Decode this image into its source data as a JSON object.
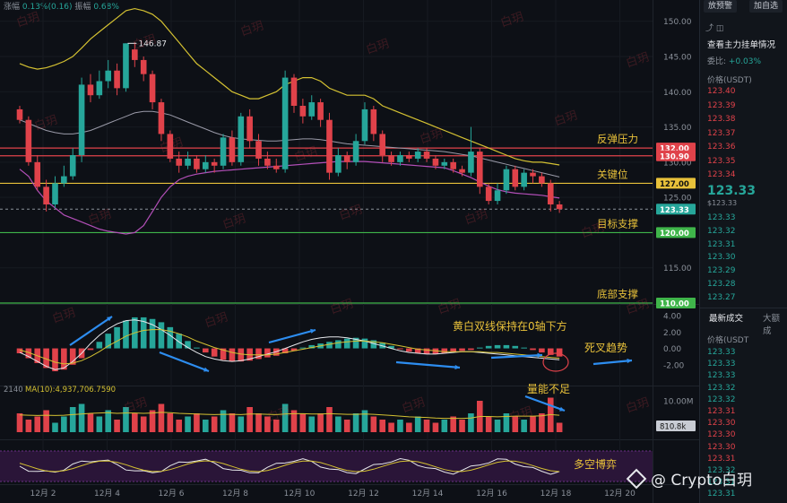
{
  "header": {
    "change_label": "涨幅",
    "change_value": "0.13%(0.16)",
    "amplitude_label": "振幅",
    "amplitude_value": "0.68%"
  },
  "chart_data": {
    "type": "candlestick",
    "symbol_price_last": 123.33,
    "price_axis": {
      "ylim": [
        110,
        152
      ],
      "ticks": [
        150,
        145,
        140,
        135,
        130,
        125,
        120,
        115
      ]
    },
    "x_ticks": [
      "12月 2",
      "12月 4",
      "12月 6",
      "12月 8",
      "12月 10",
      "12月 12",
      "12月 14",
      "12月 16",
      "12月 18",
      "12月 20"
    ],
    "high_annotation": "146.87",
    "candles": [
      [
        137.5,
        136.0,
        138.0,
        135.5
      ],
      [
        136.0,
        130.0,
        136.5,
        129.5
      ],
      [
        130.0,
        126.5,
        131.0,
        126.0
      ],
      [
        126.5,
        124.0,
        127.5,
        123.0
      ],
      [
        124.0,
        127.0,
        128.0,
        123.5
      ],
      [
        127.0,
        128.0,
        129.5,
        126.5
      ],
      [
        128.0,
        131.0,
        132.0,
        127.5
      ],
      [
        131.0,
        141.0,
        142.0,
        130.0
      ],
      [
        141.0,
        139.5,
        142.5,
        138.5
      ],
      [
        139.5,
        141.5,
        143.0,
        139.0
      ],
      [
        141.5,
        143.0,
        144.5,
        140.5
      ],
      [
        143.0,
        140.5,
        144.0,
        139.5
      ],
      [
        140.5,
        146.87,
        146.87,
        140.0
      ],
      [
        146.0,
        144.5,
        147.0,
        143.5
      ],
      [
        144.5,
        142.5,
        145.0,
        141.5
      ],
      [
        142.5,
        138.5,
        143.0,
        137.5
      ],
      [
        138.5,
        134.0,
        139.0,
        133.0
      ],
      [
        134.0,
        130.5,
        134.5,
        130.0
      ],
      [
        130.5,
        129.5,
        131.5,
        128.5
      ],
      [
        129.5,
        130.5,
        131.5,
        129.0
      ],
      [
        130.5,
        129.0,
        131.0,
        128.5
      ],
      [
        129.0,
        130.0,
        131.0,
        128.5
      ],
      [
        130.0,
        129.5,
        130.5,
        128.5
      ],
      [
        129.5,
        133.5,
        134.0,
        129.0
      ],
      [
        133.5,
        130.0,
        134.5,
        129.5
      ],
      [
        130.0,
        136.5,
        137.0,
        129.5
      ],
      [
        136.5,
        133.0,
        137.5,
        132.0
      ],
      [
        133.0,
        130.5,
        134.0,
        129.5
      ],
      [
        130.5,
        129.5,
        131.5,
        129.0
      ],
      [
        129.5,
        129.0,
        130.5,
        128.5
      ],
      [
        129.0,
        142.0,
        143.0,
        128.5
      ],
      [
        142.0,
        138.0,
        142.5,
        137.0
      ],
      [
        138.0,
        136.5,
        139.0,
        135.5
      ],
      [
        136.5,
        138.5,
        139.5,
        136.0
      ],
      [
        138.5,
        136.0,
        139.0,
        135.0
      ],
      [
        136.0,
        128.5,
        137.0,
        127.5
      ],
      [
        128.5,
        131.0,
        132.0,
        128.0
      ],
      [
        131.0,
        130.0,
        131.5,
        129.0
      ],
      [
        130.0,
        133.0,
        134.0,
        129.5
      ],
      [
        133.0,
        137.5,
        138.5,
        132.5
      ],
      [
        137.5,
        134.0,
        138.0,
        133.0
      ],
      [
        134.0,
        131.0,
        134.5,
        130.0
      ],
      [
        131.0,
        130.0,
        131.5,
        129.5
      ],
      [
        130.0,
        131.0,
        131.5,
        129.5
      ],
      [
        131.0,
        130.5,
        131.5,
        130.0
      ],
      [
        130.5,
        131.5,
        132.0,
        130.0
      ],
      [
        131.5,
        130.5,
        132.0,
        130.0
      ],
      [
        130.5,
        129.5,
        131.0,
        129.0
      ],
      [
        129.5,
        130.0,
        130.5,
        129.0
      ],
      [
        130.0,
        129.0,
        130.5,
        128.5
      ],
      [
        129.0,
        128.5,
        129.5,
        128.0
      ],
      [
        128.5,
        131.5,
        135.0,
        128.0
      ],
      [
        131.5,
        126.5,
        132.0,
        125.5
      ],
      [
        126.5,
        124.5,
        127.0,
        124.0
      ],
      [
        124.5,
        126.0,
        127.0,
        124.0
      ],
      [
        126.0,
        129.0,
        129.5,
        125.5
      ],
      [
        129.0,
        126.5,
        129.5,
        126.0
      ],
      [
        126.5,
        128.5,
        129.0,
        126.0
      ],
      [
        128.5,
        128.0,
        129.0,
        127.0
      ],
      [
        128.0,
        127.0,
        128.5,
        126.5
      ],
      [
        127.0,
        124.0,
        127.5,
        123.0
      ],
      [
        124.0,
        123.33,
        124.5,
        122.8
      ]
    ],
    "bollinger": {
      "upper": [
        144,
        143.5,
        143.2,
        143.4,
        143.8,
        144.3,
        145,
        146.2,
        147.5,
        148.5,
        149.5,
        150.5,
        151.5,
        151.8,
        151.5,
        151,
        150,
        148.5,
        147,
        145.5,
        144,
        143,
        142,
        141,
        140,
        139.5,
        139,
        139,
        139.5,
        140,
        141,
        141.5,
        142,
        142,
        141.5,
        140.5,
        140,
        139.5,
        139.5,
        139.5,
        139,
        138,
        137.5,
        137,
        136.5,
        136,
        135.5,
        135,
        134.5,
        134,
        133.5,
        133,
        132.5,
        132,
        131.5,
        131,
        130.5,
        130.2,
        130,
        130,
        129.8,
        129.6
      ],
      "middle": [
        136,
        135.5,
        135,
        134.5,
        134.2,
        134,
        134,
        134.2,
        134.5,
        135,
        135.5,
        136,
        136.5,
        137,
        137.2,
        137.2,
        137,
        136.7,
        136.2,
        135.7,
        135.2,
        134.7,
        134.2,
        133.8,
        133.5,
        133.3,
        133.2,
        133.1,
        133,
        133,
        133.1,
        133.2,
        133.3,
        133.3,
        133.2,
        133,
        132.8,
        132.6,
        132.5,
        132.4,
        132.3,
        132.2,
        132.1,
        132,
        131.9,
        131.8,
        131.7,
        131.6,
        131.5,
        131.3,
        131.1,
        130.9,
        130.6,
        130.3,
        130,
        129.7,
        129.4,
        129.1,
        128.8,
        128.5,
        128.2,
        127.9
      ],
      "lower": [
        129,
        128,
        126,
        124.5,
        123.5,
        122.5,
        122,
        121.5,
        121,
        120.5,
        120.2,
        120,
        119.8,
        120,
        121,
        123,
        125,
        126.5,
        127.5,
        128,
        128.3,
        128.5,
        128.7,
        128.8,
        128.9,
        129,
        129.1,
        129.2,
        129.3,
        129.4,
        129.5,
        129.6,
        129.7,
        129.8,
        129.9,
        130,
        130.1,
        130.1,
        130.1,
        130.1,
        130,
        129.9,
        129.8,
        129.7,
        129.6,
        129.5,
        129.4,
        129.3,
        129.2,
        128.8,
        128.3,
        127.8,
        127.2,
        126.6,
        126.1,
        125.8,
        125.6,
        125.5,
        125.4,
        125.3,
        125.1,
        124.9
      ]
    },
    "horizontal_levels": [
      {
        "price": 132.0,
        "tag": "132.00",
        "label": "反弹压力",
        "color": "#e0424a"
      },
      {
        "price": 130.9,
        "tag": "130.90",
        "label": "",
        "color": "#e0424a"
      },
      {
        "price": 127.0,
        "tag": "127.00",
        "label": "关键位",
        "color": "#e8c13a"
      },
      {
        "price": 120.0,
        "tag": "120.00",
        "label": "目标支撑",
        "color": "#3fb54a"
      },
      {
        "price": 110.0,
        "tag": "110.00",
        "label": "底部支撑",
        "color": "#3fb54a"
      }
    ],
    "current_price_tag": "123.33",
    "macd": {
      "axis_ticks": [
        "4.00",
        "2.00",
        "0.00",
        "-2.00"
      ],
      "ylim": [
        -4,
        5
      ],
      "histogram": [
        -0.6,
        -1.2,
        -1.8,
        -2.4,
        -2.8,
        -2.6,
        -2.0,
        -1.2,
        -0.2,
        0.8,
        1.8,
        2.6,
        3.4,
        3.8,
        3.8,
        3.6,
        3.2,
        2.6,
        1.8,
        0.9,
        0.1,
        -0.5,
        -1.0,
        -1.4,
        -1.6,
        -1.6,
        -1.5,
        -1.3,
        -1.1,
        -0.9,
        -0.6,
        -0.3,
        0.1,
        0.4,
        0.6,
        0.8,
        1.0,
        1.2,
        1.3,
        1.2,
        1.0,
        0.7,
        0.3,
        -0.1,
        -0.4,
        -0.6,
        -0.7,
        -0.7,
        -0.6,
        -0.4,
        -0.3,
        -0.2,
        0.1,
        0.3,
        0.4,
        0.4,
        0.3,
        0.1,
        -0.2,
        -0.5,
        -0.8,
        -1.0
      ],
      "dif": [
        -0.5,
        -1.0,
        -1.6,
        -2.2,
        -2.6,
        -2.4,
        -1.6,
        -0.6,
        0.6,
        1.6,
        2.4,
        3.0,
        3.4,
        3.5,
        3.3,
        2.9,
        2.3,
        1.6,
        0.8,
        0.1,
        -0.5,
        -1.0,
        -1.3,
        -1.5,
        -1.6,
        -1.5,
        -1.3,
        -1.0,
        -0.7,
        -0.4,
        0.0,
        0.4,
        0.8,
        1.1,
        1.3,
        1.4,
        1.4,
        1.3,
        1.1,
        0.9,
        0.6,
        0.3,
        0.0,
        -0.3,
        -0.5,
        -0.6,
        -0.7,
        -0.7,
        -0.6,
        -0.5,
        -0.4,
        -0.4,
        -0.5,
        -0.6,
        -0.7,
        -0.8,
        -0.9,
        -1.0,
        -1.1,
        -1.2,
        -1.3,
        -1.4
      ],
      "dea": [
        -0.2,
        -0.5,
        -0.9,
        -1.3,
        -1.7,
        -1.9,
        -1.8,
        -1.5,
        -1.0,
        -0.4,
        0.3,
        0.9,
        1.5,
        1.9,
        2.2,
        2.3,
        2.3,
        2.1,
        1.8,
        1.4,
        0.9,
        0.5,
        0.1,
        -0.2,
        -0.5,
        -0.7,
        -0.8,
        -0.8,
        -0.8,
        -0.7,
        -0.5,
        -0.3,
        -0.1,
        0.1,
        0.3,
        0.5,
        0.7,
        0.8,
        0.9,
        0.9,
        0.8,
        0.7,
        0.5,
        0.3,
        0.1,
        -0.1,
        -0.2,
        -0.3,
        -0.4,
        -0.4,
        -0.4,
        -0.4,
        -0.4,
        -0.5,
        -0.5,
        -0.6,
        -0.7,
        -0.8,
        -0.9,
        -1.0,
        -1.1,
        -1.2
      ]
    },
    "volume": {
      "left_label_num": "2140",
      "ma_label": "MA(10):4,937,706.7590",
      "axis_ticks": [
        "10.00M",
        "810.8k"
      ],
      "ylim": [
        0,
        12
      ],
      "bars": [
        6,
        4,
        5,
        7,
        3,
        5,
        8,
        9,
        6,
        5,
        7,
        4,
        8,
        6,
        5,
        7,
        9,
        6,
        4,
        5,
        6,
        4,
        5,
        7,
        6,
        5,
        8,
        6,
        5,
        4,
        9,
        7,
        6,
        5,
        6,
        8,
        5,
        4,
        6,
        7,
        5,
        4,
        3,
        4,
        3,
        5,
        4,
        3,
        4,
        5,
        4,
        6,
        10,
        5,
        4,
        6,
        5,
        4,
        5,
        6,
        11,
        3
      ],
      "ma": [
        5.5,
        5.4,
        5.3,
        5.4,
        5.3,
        5.4,
        5.6,
        5.8,
        6.0,
        6.1,
        6.2,
        6.0,
        6.1,
        6.1,
        6.0,
        6.1,
        6.3,
        6.2,
        6.0,
        5.9,
        5.8,
        5.7,
        5.6,
        5.7,
        5.7,
        5.6,
        5.8,
        5.8,
        5.7,
        5.6,
        5.8,
        5.9,
        5.9,
        5.8,
        5.8,
        5.9,
        5.8,
        5.7,
        5.7,
        5.8,
        5.7,
        5.5,
        5.3,
        5.1,
        4.9,
        4.8,
        4.7,
        4.5,
        4.4,
        4.4,
        4.4,
        4.5,
        5.0,
        5.0,
        4.9,
        5.0,
        5.1,
        5.1,
        5.1,
        5.2,
        5.6,
        5.4
      ]
    },
    "annotations": {
      "macd_note": "黄白双线保持在0轴下方",
      "death_cross": "死叉趋势",
      "volume_note": "量能不足",
      "long_short": "多空博弈"
    },
    "watermark_text": "白玥",
    "author_tag": "@ Crypto白玥"
  },
  "right_panel": {
    "btn_left": "放预警",
    "btn_right": "加自选",
    "order_book_title": "查看主力挂单情况",
    "weibi_label": "委比:",
    "weibi_value": "+0.03%",
    "price_header": "价格(USDT)",
    "asks": [
      "123.40",
      "123.39",
      "123.38",
      "123.37",
      "123.36",
      "123.35",
      "123.34"
    ],
    "last_price": "123.33",
    "last_price_sub": "$123.33",
    "bids": [
      "123.33",
      "123.32",
      "123.31",
      "123.30",
      "123.29",
      "123.28",
      "123.27"
    ],
    "tab_latest": "最新成交",
    "tab_big": "大额成",
    "trades_header": "价格(USDT",
    "trades": [
      {
        "p": "123.33",
        "side": "bid"
      },
      {
        "p": "123.33",
        "side": "bid"
      },
      {
        "p": "123.33",
        "side": "bid"
      },
      {
        "p": "123.32",
        "side": "bid"
      },
      {
        "p": "123.32",
        "side": "bid"
      },
      {
        "p": "123.31",
        "side": "ask"
      },
      {
        "p": "123.30",
        "side": "ask"
      },
      {
        "p": "123.30",
        "side": "ask"
      },
      {
        "p": "123.30",
        "side": "ask"
      },
      {
        "p": "123.31",
        "side": "ask"
      },
      {
        "p": "123.32",
        "side": "bid"
      },
      {
        "p": "123.31",
        "side": "bid"
      },
      {
        "p": "123.31",
        "side": "bid"
      }
    ]
  }
}
